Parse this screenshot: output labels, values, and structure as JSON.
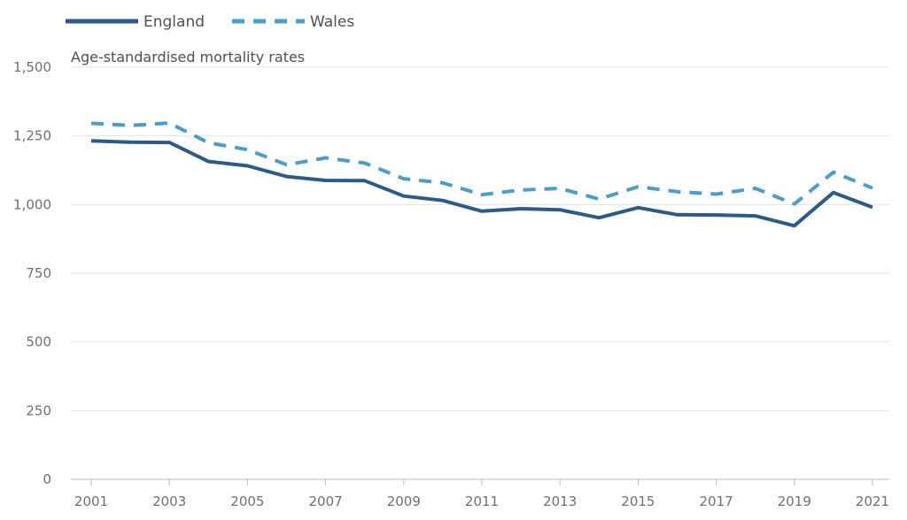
{
  "chart_data": {
    "type": "line",
    "title": "",
    "ylabel": "Age-standardised mortality rates",
    "xlabel": "",
    "ylim": [
      0,
      1500
    ],
    "xlim": [
      2001,
      2021
    ],
    "y_ticks": [
      0,
      250,
      500,
      750,
      1000,
      1250,
      1500
    ],
    "y_tick_labels": [
      "0",
      "250",
      "500",
      "750",
      "1,000",
      "1,250",
      "1,500"
    ],
    "x_ticks": [
      2001,
      2003,
      2005,
      2007,
      2009,
      2011,
      2013,
      2015,
      2017,
      2019,
      2021
    ],
    "x_tick_labels": [
      "2001",
      "2003",
      "2005",
      "2007",
      "2009",
      "2011",
      "2013",
      "2015",
      "2017",
      "2019",
      "2021"
    ],
    "grid": "horizontal",
    "legend_position": "top-left",
    "x": [
      2001,
      2002,
      2003,
      2004,
      2005,
      2006,
      2007,
      2008,
      2009,
      2010,
      2011,
      2012,
      2013,
      2014,
      2015,
      2016,
      2017,
      2018,
      2019,
      2020,
      2021
    ],
    "series": [
      {
        "name": "England",
        "color": "#2e5a88",
        "style": "solid",
        "values": [
          1232,
          1227,
          1226,
          1157,
          1141,
          1102,
          1088,
          1087,
          1031,
          1015,
          976,
          985,
          981,
          952,
          989,
          963,
          962,
          959,
          923,
          1044,
          990
        ]
      },
      {
        "name": "Wales",
        "color": "#4e9cc8",
        "style": "dashed",
        "values": [
          1296,
          1288,
          1297,
          1225,
          1200,
          1145,
          1170,
          1151,
          1094,
          1079,
          1036,
          1053,
          1059,
          1020,
          1065,
          1047,
          1038,
          1059,
          1002,
          1118,
          1060
        ]
      }
    ]
  }
}
